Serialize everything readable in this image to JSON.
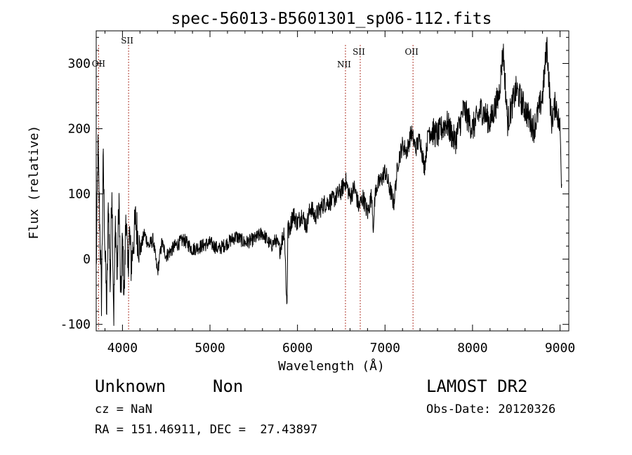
{
  "chart_data": {
    "type": "line",
    "title": "spec-56013-B5601301_sp06-112.fits",
    "xlabel": "Wavelength (Å)",
    "ylabel": "Flux (relative)",
    "xlim": [
      3700,
      9100
    ],
    "ylim": [
      -110,
      350
    ],
    "xticks": [
      4000,
      5000,
      6000,
      7000,
      8000,
      9000
    ],
    "yticks": [
      -100,
      0,
      100,
      200,
      300
    ],
    "grid": false,
    "line_color": "#000000",
    "marker_color": "#b03a2e",
    "lines": [
      {
        "label": "OII",
        "wavelength": 3727
      },
      {
        "label": "SII",
        "wavelength": 4070
      },
      {
        "label": "NII",
        "wavelength": 6548
      },
      {
        "label": "SII",
        "wavelength": 6717
      },
      {
        "label": "OII",
        "wavelength": 7320
      }
    ],
    "spectrum": {
      "x": [
        3700,
        3720,
        3740,
        3760,
        3780,
        3800,
        3820,
        3840,
        3860,
        3880,
        3900,
        3920,
        3940,
        3960,
        3980,
        4000,
        4020,
        4040,
        4060,
        4080,
        4100,
        4150,
        4200,
        4250,
        4300,
        4350,
        4400,
        4450,
        4500,
        4600,
        4700,
        4800,
        4900,
        5000,
        5100,
        5200,
        5300,
        5400,
        5500,
        5600,
        5700,
        5750,
        5800,
        5850,
        5880,
        5890,
        5900,
        5950,
        6000,
        6050,
        6100,
        6150,
        6200,
        6300,
        6400,
        6500,
        6550,
        6600,
        6650,
        6700,
        6750,
        6800,
        6850,
        6870,
        6880,
        6900,
        6950,
        7000,
        7050,
        7100,
        7150,
        7200,
        7250,
        7300,
        7350,
        7400,
        7450,
        7500,
        7600,
        7700,
        7800,
        7900,
        8000,
        8100,
        8200,
        8300,
        8350,
        8400,
        8500,
        8600,
        8700,
        8800,
        8850,
        8900,
        8950,
        9000,
        9020
      ],
      "y": [
        -20,
        170,
        60,
        -60,
        150,
        20,
        -80,
        90,
        -40,
        120,
        -90,
        60,
        -30,
        100,
        -70,
        30,
        -60,
        80,
        -20,
        40,
        -10,
        60,
        10,
        40,
        20,
        30,
        -20,
        25,
        5,
        20,
        30,
        15,
        20,
        25,
        15,
        25,
        35,
        25,
        30,
        40,
        20,
        30,
        15,
        45,
        -80,
        60,
        40,
        70,
        55,
        70,
        50,
        80,
        65,
        85,
        90,
        105,
        120,
        95,
        110,
        80,
        95,
        70,
        100,
        35,
        90,
        110,
        120,
        135,
        110,
        85,
        150,
        175,
        165,
        195,
        170,
        185,
        140,
        200,
        190,
        210,
        180,
        230,
        200,
        230,
        210,
        250,
        320,
        210,
        260,
        230,
        200,
        250,
        330,
        210,
        240,
        200,
        110
      ]
    }
  },
  "footer": {
    "object_class": "Unknown",
    "object_subclass": "Non",
    "survey": "LAMOST DR2",
    "cz": "cz = NaN",
    "obs_date": "Obs-Date: 20120326",
    "coords": "RA = 151.46911, DEC =  27.43897"
  }
}
